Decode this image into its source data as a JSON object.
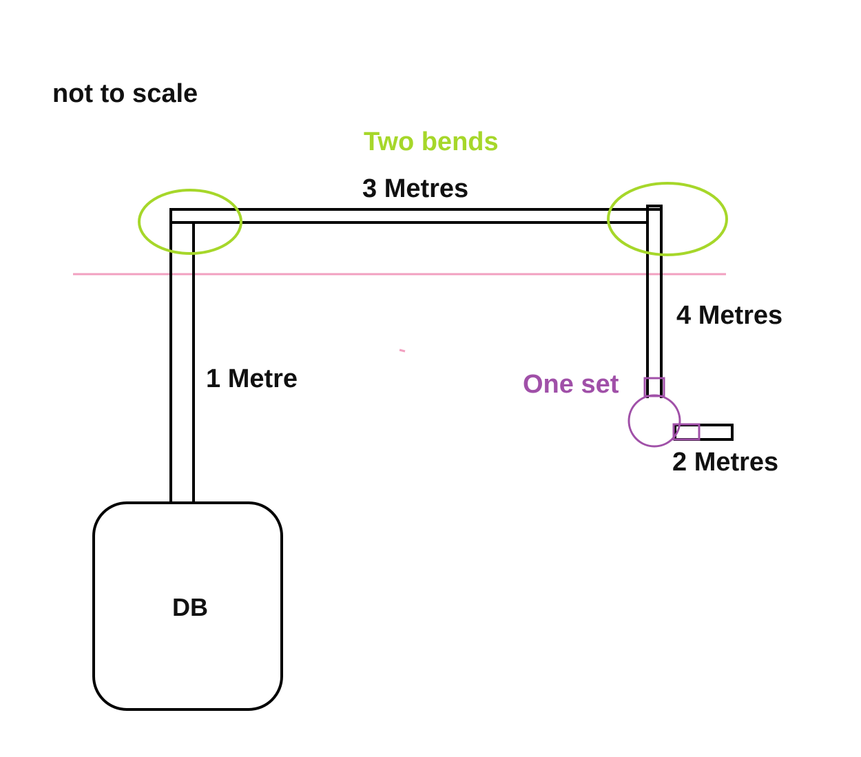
{
  "note": "not to scale",
  "annotations": {
    "bends": "Two bends",
    "set": "One set"
  },
  "runs": {
    "vertical_left": "1 Metre",
    "top": "3 Metres",
    "vertical_right": "4 Metres",
    "short_branch": "2 Metres"
  },
  "db_label": "DB",
  "colors": {
    "pipe": "#000000",
    "bend_marker": "#a6d72a",
    "set_marker": "#a050a8",
    "reference_line": "#f2a0c0",
    "label": "#111111"
  }
}
